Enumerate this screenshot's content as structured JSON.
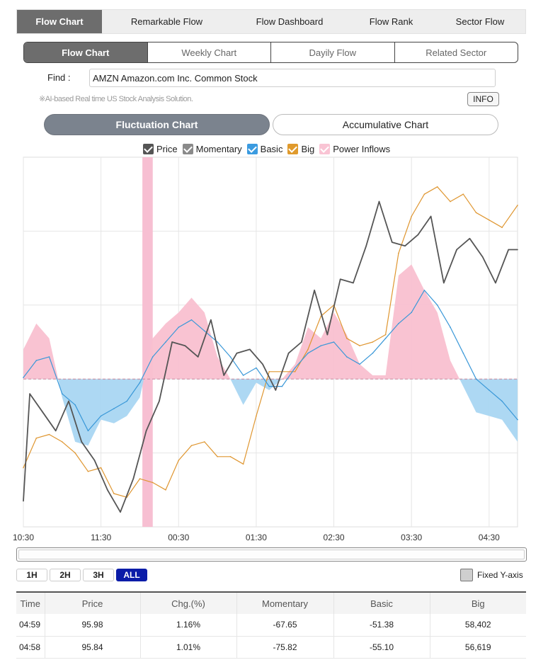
{
  "topnav": {
    "tabs": [
      {
        "label": "Flow Chart",
        "active": true
      },
      {
        "label": "Remarkable Flow",
        "active": false
      },
      {
        "label": "Flow Dashboard",
        "active": false
      },
      {
        "label": "Flow Rank",
        "active": false
      },
      {
        "label": "Sector Flow",
        "active": false
      }
    ]
  },
  "subtabs": [
    {
      "label": "Flow Chart",
      "active": true
    },
    {
      "label": "Weekly Chart",
      "active": false
    },
    {
      "label": "Dayily Flow",
      "active": false
    },
    {
      "label": "Related Sector",
      "active": false
    }
  ],
  "find": {
    "label": "Find :",
    "value": "AMZN Amazon.com Inc. Common Stock"
  },
  "note": "※AI-based Real time US Stock Analysis Solution.",
  "info_label": "INFO",
  "chart_mode": {
    "fluctuation": "Fluctuation Chart",
    "accumulative": "Accumulative Chart"
  },
  "legend": [
    {
      "label": "Price",
      "color": "#555555",
      "checked": true
    },
    {
      "label": "Momentary",
      "color": "#888888",
      "checked": true
    },
    {
      "label": "Basic",
      "color": "#3b9be0",
      "checked": true
    },
    {
      "label": "Big",
      "color": "#e09a2c",
      "checked": true
    },
    {
      "label": "Power Inflows",
      "color": "#f9c4d4",
      "checked": false
    }
  ],
  "colors": {
    "price": "#555555",
    "basic": "#3a98d8",
    "big": "#df9630",
    "positive_fill": "#f9c0d0",
    "negative_fill": "#a9d6f2",
    "highlight": "#f7bfd2"
  },
  "chart_data": {
    "type": "line",
    "x_ticks": [
      "10:30",
      "11:30",
      "00:30",
      "01:30",
      "02:30",
      "03:30",
      "04:30"
    ],
    "x_range": [
      "10:30",
      "04:52"
    ],
    "y_range": [
      -2,
      3
    ],
    "highlight_band": [
      "12:02",
      "12:10"
    ],
    "series": [
      {
        "name": "Price",
        "x": [
          "10:30",
          "10:35",
          "10:45",
          "10:55",
          "11:05",
          "11:15",
          "11:25",
          "11:35",
          "11:45",
          "11:55",
          "12:05",
          "12:15",
          "12:25",
          "12:35",
          "12:45",
          "12:55",
          "01:05",
          "01:15",
          "01:25",
          "01:35",
          "01:45",
          "01:55",
          "02:05",
          "02:15",
          "02:25",
          "02:35",
          "02:45",
          "02:55",
          "03:05",
          "03:15",
          "03:25",
          "03:35",
          "03:45",
          "03:55",
          "04:05",
          "04:15",
          "04:25",
          "04:35",
          "04:45",
          "04:52"
        ],
        "values": [
          -1.65,
          -0.2,
          -0.45,
          -0.7,
          -0.3,
          -0.85,
          -1.1,
          -1.5,
          -1.8,
          -1.35,
          -0.7,
          -0.3,
          0.5,
          0.45,
          0.3,
          0.8,
          0.05,
          0.35,
          0.4,
          0.2,
          -0.15,
          0.35,
          0.5,
          1.2,
          0.6,
          1.35,
          1.3,
          1.8,
          2.4,
          1.85,
          1.8,
          1.95,
          2.2,
          1.3,
          1.75,
          1.9,
          1.65,
          1.3,
          1.75,
          1.75
        ]
      },
      {
        "name": "Basic",
        "x": [
          "10:30",
          "10:40",
          "10:50",
          "11:00",
          "11:10",
          "11:20",
          "11:30",
          "11:40",
          "11:50",
          "12:00",
          "12:10",
          "12:20",
          "12:30",
          "12:40",
          "12:50",
          "01:00",
          "01:10",
          "01:20",
          "01:30",
          "01:40",
          "01:50",
          "02:00",
          "02:10",
          "02:20",
          "02:30",
          "02:40",
          "02:50",
          "03:00",
          "03:10",
          "03:20",
          "03:30",
          "03:40",
          "03:50",
          "04:00",
          "04:10",
          "04:20",
          "04:30",
          "04:40",
          "04:52"
        ],
        "values": [
          0.02,
          0.25,
          0.3,
          -0.2,
          -0.35,
          -0.7,
          -0.5,
          -0.4,
          -0.3,
          -0.05,
          0.3,
          0.5,
          0.7,
          0.8,
          0.65,
          0.5,
          0.3,
          0.05,
          0.15,
          -0.1,
          -0.1,
          0.15,
          0.35,
          0.45,
          0.5,
          0.3,
          0.2,
          0.35,
          0.55,
          0.75,
          0.9,
          1.2,
          1.0,
          0.7,
          0.35,
          0.0,
          -0.15,
          -0.3,
          -0.55
        ]
      },
      {
        "name": "Big",
        "x": [
          "10:30",
          "10:40",
          "10:50",
          "11:00",
          "11:10",
          "11:20",
          "11:30",
          "11:40",
          "11:50",
          "12:00",
          "12:10",
          "12:20",
          "12:30",
          "12:40",
          "12:50",
          "01:00",
          "01:10",
          "01:20",
          "01:30",
          "01:40",
          "01:50",
          "02:00",
          "02:10",
          "02:20",
          "02:30",
          "02:40",
          "02:50",
          "03:00",
          "03:10",
          "03:20",
          "03:30",
          "03:40",
          "03:50",
          "04:00",
          "04:10",
          "04:20",
          "04:30",
          "04:40",
          "04:52"
        ],
        "values": [
          -1.2,
          -0.8,
          -0.75,
          -0.85,
          -1.0,
          -1.25,
          -1.2,
          -1.55,
          -1.6,
          -1.35,
          -1.4,
          -1.5,
          -1.1,
          -0.9,
          -0.85,
          -1.05,
          -1.05,
          -1.15,
          -0.5,
          0.1,
          0.1,
          0.1,
          0.4,
          0.85,
          1.0,
          0.55,
          0.45,
          0.5,
          0.6,
          1.7,
          2.2,
          2.5,
          2.6,
          2.4,
          2.5,
          2.25,
          2.15,
          2.05,
          2.35
        ]
      },
      {
        "name": "Power Inflows",
        "x": [
          "10:30",
          "10:40",
          "10:50",
          "11:00",
          "11:10",
          "11:20",
          "11:30",
          "11:40",
          "11:50",
          "12:00",
          "12:10",
          "12:20",
          "12:30",
          "12:40",
          "12:50",
          "01:00",
          "01:10",
          "01:20",
          "01:30",
          "01:40",
          "01:50",
          "02:00",
          "02:10",
          "02:20",
          "02:30",
          "02:40",
          "02:50",
          "03:00",
          "03:10",
          "03:20",
          "03:30",
          "03:40",
          "03:50",
          "04:00",
          "04:10",
          "04:20",
          "04:30",
          "04:40",
          "04:52"
        ],
        "values": [
          0.4,
          0.75,
          0.55,
          -0.25,
          -0.85,
          -0.9,
          -0.55,
          -0.6,
          -0.5,
          -0.25,
          0.55,
          0.75,
          0.9,
          1.1,
          0.9,
          0.3,
          0.0,
          -0.35,
          -0.05,
          -0.15,
          0.0,
          0.2,
          0.7,
          0.55,
          0.9,
          0.6,
          0.2,
          0.05,
          0.05,
          1.4,
          1.55,
          1.2,
          0.9,
          0.25,
          -0.1,
          -0.45,
          -0.5,
          -0.55,
          -0.85
        ]
      }
    ]
  },
  "range_buttons": [
    {
      "label": "1H",
      "active": false
    },
    {
      "label": "2H",
      "active": false
    },
    {
      "label": "3H",
      "active": false
    },
    {
      "label": "ALL",
      "active": true
    }
  ],
  "fixed_y_label": "Fixed Y-axis",
  "table": {
    "headers": [
      "Time",
      "Price",
      "Chg.(%)",
      "Momentary",
      "Basic",
      "Big"
    ],
    "rows": [
      [
        "04:59",
        "95.98",
        "1.16%",
        "-67.65",
        "-51.38",
        "58,402"
      ],
      [
        "04:58",
        "95.84",
        "1.01%",
        "-75.82",
        "-55.10",
        "56,619"
      ]
    ]
  }
}
